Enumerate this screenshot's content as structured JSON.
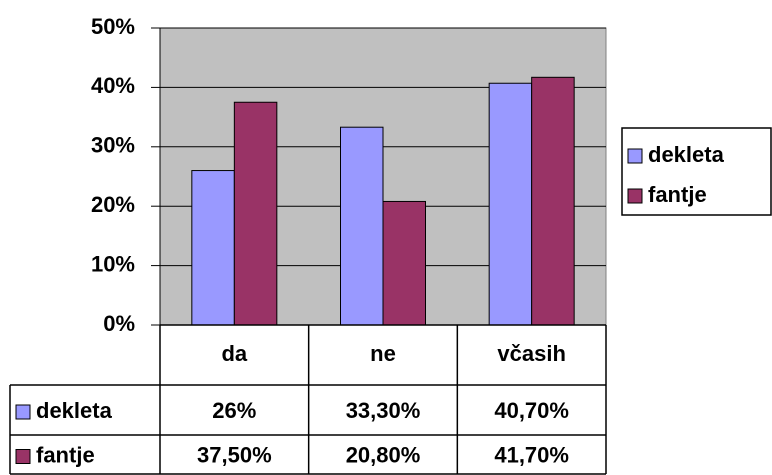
{
  "chart_data": {
    "type": "bar",
    "categories": [
      "da",
      "ne",
      "včasih"
    ],
    "series": [
      {
        "name": "dekleta",
        "color": "#9999ff",
        "values": [
          26,
          33.3,
          40.7
        ],
        "value_labels": [
          "26%",
          "33,30%",
          "40,70%"
        ]
      },
      {
        "name": "fantje",
        "color": "#993366",
        "values": [
          37.5,
          20.8,
          41.7
        ],
        "value_labels": [
          "37,50%",
          "20,80%",
          "41,70%"
        ]
      }
    ],
    "ylim": [
      0,
      50
    ],
    "yticks": [
      {
        "value": 0,
        "label": "0%"
      },
      {
        "value": 10,
        "label": "10%"
      },
      {
        "value": 20,
        "label": "20%"
      },
      {
        "value": 30,
        "label": "30%"
      },
      {
        "value": 40,
        "label": "40%"
      },
      {
        "value": 50,
        "label": "50%"
      }
    ],
    "grid": true,
    "legend": "right",
    "plot_background": "#c0c0c0"
  }
}
